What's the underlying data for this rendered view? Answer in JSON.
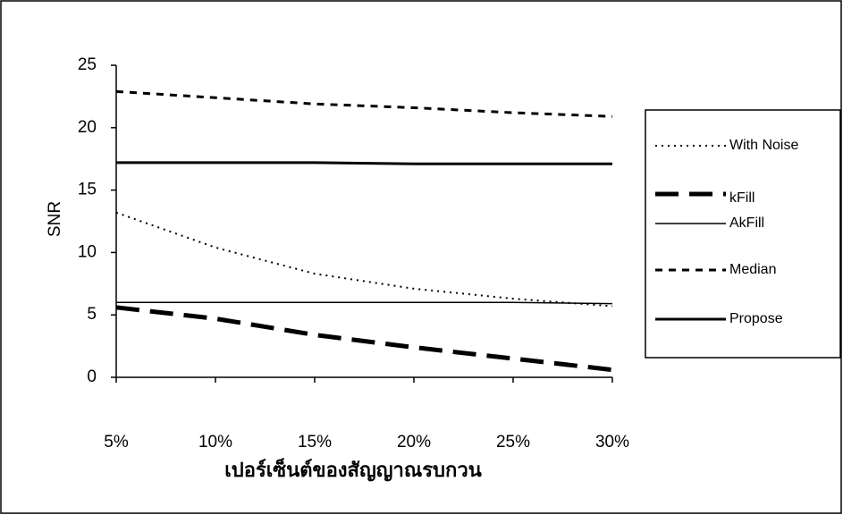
{
  "chart_data": {
    "type": "line",
    "x_label": "เปอร์เซ็นต์ของสัญญาณรบกวน",
    "y_label": "SNR",
    "categories": [
      "5%",
      "10%",
      "15%",
      "20%",
      "25%",
      "30%"
    ],
    "series": [
      {
        "name": "With Noise",
        "color": "#000000",
        "values": [
          13.2,
          10.4,
          8.3,
          7.1,
          6.3,
          5.7
        ]
      },
      {
        "name": "kFill",
        "color": "#000000",
        "values": [
          5.6,
          4.7,
          3.4,
          2.4,
          1.5,
          0.6
        ]
      },
      {
        "name": "AkFill",
        "color": "#000000",
        "values": [
          6.0,
          6.0,
          6.0,
          6.0,
          6.0,
          5.9
        ]
      },
      {
        "name": "Median",
        "color": "#000000",
        "values": [
          22.9,
          22.4,
          21.9,
          21.6,
          21.2,
          20.9
        ]
      },
      {
        "name": "Propose",
        "color": "#000000",
        "values": [
          17.2,
          17.2,
          17.2,
          17.1,
          17.1,
          17.1
        ]
      }
    ],
    "ylim": [
      0,
      25
    ],
    "yticks": [
      0,
      5,
      10,
      15,
      20,
      25
    ],
    "grid": false,
    "legend": "right"
  }
}
